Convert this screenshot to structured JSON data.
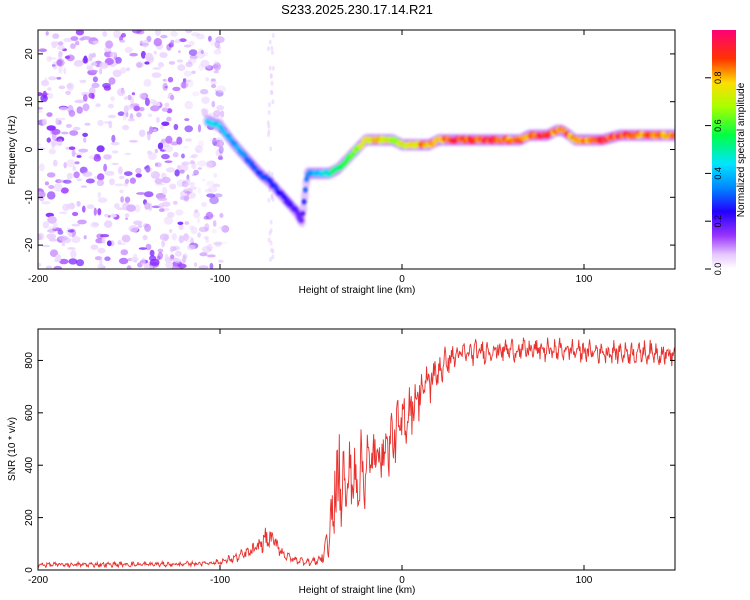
{
  "title": "S233.2025.230.17.14.R21",
  "chart_data": [
    {
      "type": "heatmap",
      "xlabel": "Height of straight line (km)",
      "ylabel": "Frequency (Hz)",
      "xlim": [
        -200,
        150
      ],
      "ylim": [
        -25,
        25
      ],
      "xticks": [
        -200,
        -100,
        0,
        100
      ],
      "yticks": [
        -20,
        -10,
        0,
        10,
        20
      ],
      "colorbar": {
        "label": "Normalized spectral amplitude",
        "range": [
          0,
          1
        ],
        "ticks": [
          "0.0",
          "0.2",
          "0.4",
          "0.6",
          "0.8"
        ],
        "tick_values": [
          0,
          0.2,
          0.4,
          0.6,
          0.8
        ]
      },
      "ridge": {
        "x": [
          -107,
          -100,
          -92,
          -85,
          -78,
          -72,
          -65,
          -58,
          -55,
          -52,
          -48,
          -44,
          -40,
          -35,
          -30,
          -25,
          -20,
          -15,
          -10,
          -5,
          0,
          5,
          10,
          15,
          20,
          25,
          30,
          40,
          50,
          60,
          65,
          70,
          75,
          80,
          85,
          88,
          92,
          95,
          100,
          105,
          110,
          120,
          130,
          140,
          150
        ],
        "y": [
          6,
          5,
          1,
          -2,
          -5,
          -7,
          -10,
          -13,
          -15,
          -5,
          -5,
          -5,
          -5,
          -4,
          -2,
          0,
          2,
          2,
          2,
          2,
          1,
          1,
          1,
          1,
          2,
          2,
          2,
          2,
          2,
          2,
          2,
          3,
          3,
          3,
          4,
          4,
          3,
          2,
          2,
          2,
          2,
          3,
          3,
          3,
          3
        ],
        "amplitude": [
          0.45,
          0.45,
          0.4,
          0.35,
          0.3,
          0.3,
          0.25,
          0.2,
          0.2,
          0.35,
          0.4,
          0.45,
          0.5,
          0.55,
          0.6,
          0.7,
          0.75,
          0.8,
          0.8,
          0.75,
          0.75,
          0.8,
          0.85,
          0.85,
          0.85,
          0.9,
          0.95,
          0.95,
          0.95,
          0.9,
          0.9,
          0.9,
          0.95,
          0.95,
          0.9,
          0.9,
          0.9,
          0.85,
          0.85,
          0.9,
          0.95,
          0.95,
          0.9,
          0.85,
          0.85
        ]
      },
      "noise_region_x": [
        -200,
        -105
      ]
    },
    {
      "type": "line",
      "xlabel": "Height of straight line (km)",
      "ylabel": "SNR (10 * v/v)",
      "xlim": [
        -200,
        150
      ],
      "ylim": [
        0,
        920
      ],
      "xticks": [
        -200,
        -100,
        0,
        100
      ],
      "yticks": [
        0,
        200,
        400,
        600,
        800
      ],
      "series": [
        {
          "name": "SNR",
          "color": "#e8302c",
          "envelope_x": [
            -200,
            -120,
            -100,
            -90,
            -80,
            -75,
            -70,
            -65,
            -60,
            -50,
            -45,
            -40,
            -38,
            -35,
            -30,
            -25,
            -20,
            -15,
            -10,
            -5,
            0,
            5,
            10,
            15,
            20,
            25,
            30,
            50,
            70,
            90,
            100,
            120,
            140,
            150
          ],
          "envelope_y": [
            20,
            22,
            30,
            50,
            80,
            120,
            110,
            60,
            40,
            30,
            40,
            100,
            240,
            300,
            330,
            360,
            390,
            430,
            460,
            500,
            560,
            620,
            680,
            720,
            760,
            800,
            820,
            840,
            840,
            840,
            835,
            830,
            830,
            820
          ],
          "noise_amplitude": [
            10,
            10,
            12,
            20,
            30,
            45,
            40,
            25,
            15,
            15,
            20,
            80,
            170,
            180,
            170,
            160,
            150,
            140,
            130,
            120,
            120,
            110,
            100,
            90,
            80,
            60,
            50,
            45,
            45,
            45,
            45,
            45,
            45,
            45
          ]
        }
      ]
    }
  ]
}
